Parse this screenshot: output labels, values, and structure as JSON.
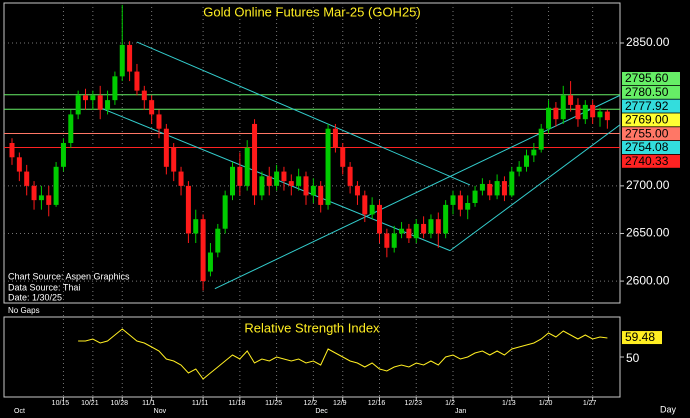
{
  "chart_data": [
    {
      "type": "candlestick",
      "title": "Gold Online Futures Mar-25 (GOH25)",
      "notes": [
        "Chart Source: Aspen Graphics",
        "Data Source: Thai",
        "Date:    1/30/25"
      ],
      "footnote": "No Gaps",
      "up_color": "#00cc00",
      "down_color": "#ff1a1a",
      "categories": [
        null,
        null,
        null,
        null,
        null,
        null,
        null,
        "10/15",
        null,
        null,
        null,
        "10/21",
        null,
        null,
        null,
        "10/28",
        null,
        null,
        null,
        "11/1",
        null,
        null,
        null,
        null,
        null,
        null,
        "11/11",
        null,
        null,
        null,
        null,
        "11/18",
        null,
        null,
        null,
        null,
        "11/25",
        null,
        null,
        null,
        null,
        "12/2",
        null,
        null,
        null,
        "12/9",
        null,
        null,
        null,
        null,
        "12/16",
        null,
        null,
        null,
        null,
        "12/23",
        null,
        null,
        null,
        null,
        "1/2",
        null,
        null,
        null,
        null,
        null,
        null,
        null,
        "1/13",
        null,
        null,
        null,
        null,
        "1/20",
        null,
        null,
        null,
        null,
        null,
        "1/27",
        null,
        null
      ],
      "months": [
        "Oct",
        "Nov",
        "Dec",
        "Jan"
      ],
      "period_label": "Day",
      "open": [
        2745,
        2730,
        2715,
        2700,
        2685,
        2690,
        2680,
        2720,
        2745,
        2775,
        2795,
        2790,
        2795,
        2780,
        2790,
        2815,
        2848,
        2820,
        2800,
        2790,
        2775,
        2760,
        2740,
        2715,
        2700,
        2650,
        2665,
        2610,
        2630,
        2655,
        2690,
        2720,
        2700,
        2765,
        2690,
        2710,
        2700,
        2715,
        2705,
        2700,
        2710,
        2690,
        2700,
        2680,
        2760,
        2740,
        2720,
        2700,
        2690,
        2670,
        2680,
        2650,
        2635,
        2650,
        2655,
        2645,
        2660,
        2650,
        2665,
        2650,
        2680,
        2690,
        2675,
        2682,
        2695,
        2702,
        2690,
        2705,
        2690,
        2715,
        2720,
        2732,
        2738,
        2760,
        2782,
        2770,
        2795,
        2785,
        2770,
        2785,
        2772,
        2778
      ],
      "high": [
        2750,
        2735,
        2722,
        2705,
        2700,
        2700,
        2725,
        2750,
        2780,
        2800,
        2802,
        2800,
        2805,
        2800,
        2820,
        2890,
        2852,
        2828,
        2805,
        2795,
        2780,
        2765,
        2745,
        2720,
        2705,
        2675,
        2670,
        2640,
        2660,
        2695,
        2725,
        2735,
        2748,
        2770,
        2715,
        2720,
        2722,
        2720,
        2712,
        2718,
        2715,
        2708,
        2705,
        2765,
        2765,
        2745,
        2725,
        2705,
        2695,
        2688,
        2685,
        2655,
        2658,
        2662,
        2660,
        2665,
        2668,
        2670,
        2672,
        2685,
        2695,
        2695,
        2690,
        2700,
        2708,
        2706,
        2712,
        2710,
        2720,
        2726,
        2738,
        2745,
        2765,
        2790,
        2788,
        2805,
        2810,
        2792,
        2790,
        2790,
        2782,
        2780
      ],
      "low": [
        2722,
        2705,
        2690,
        2675,
        2675,
        2668,
        2678,
        2715,
        2740,
        2770,
        2780,
        2780,
        2770,
        2775,
        2785,
        2810,
        2810,
        2795,
        2780,
        2765,
        2750,
        2712,
        2705,
        2690,
        2640,
        2640,
        2590,
        2605,
        2625,
        2650,
        2685,
        2690,
        2695,
        2680,
        2685,
        2690,
        2695,
        2695,
        2690,
        2695,
        2680,
        2682,
        2672,
        2675,
        2735,
        2712,
        2692,
        2680,
        2662,
        2665,
        2640,
        2625,
        2630,
        2645,
        2640,
        2640,
        2645,
        2645,
        2635,
        2645,
        2670,
        2668,
        2665,
        2678,
        2690,
        2685,
        2686,
        2684,
        2688,
        2710,
        2715,
        2725,
        2735,
        2755,
        2762,
        2765,
        2778,
        2762,
        2765,
        2765,
        2762,
        2760
      ],
      "close": [
        2730,
        2715,
        2700,
        2685,
        2690,
        2680,
        2720,
        2745,
        2775,
        2795,
        2790,
        2795,
        2780,
        2790,
        2815,
        2848,
        2820,
        2800,
        2790,
        2775,
        2760,
        2720,
        2715,
        2700,
        2650,
        2665,
        2600,
        2630,
        2655,
        2690,
        2720,
        2700,
        2740,
        2690,
        2710,
        2700,
        2715,
        2705,
        2700,
        2710,
        2690,
        2700,
        2680,
        2760,
        2740,
        2720,
        2700,
        2690,
        2670,
        2680,
        2650,
        2635,
        2650,
        2655,
        2645,
        2660,
        2650,
        2665,
        2650,
        2680,
        2690,
        2675,
        2682,
        2695,
        2702,
        2690,
        2705,
        2690,
        2715,
        2720,
        2732,
        2738,
        2760,
        2782,
        2770,
        2795,
        2785,
        2770,
        2785,
        2772,
        2778,
        2769
      ],
      "ylim": [
        2577,
        2892
      ],
      "yticks": [
        {
          "value": 2600,
          "label": "2600.00"
        },
        {
          "value": 2650,
          "label": "2650.00"
        },
        {
          "value": 2700,
          "label": "2700.00"
        },
        {
          "value": 2850,
          "label": "2850.00"
        }
      ],
      "grid": true,
      "trendline_color": "#33cccc",
      "trendlines": [
        {
          "from": [
            17,
            2851
          ],
          "to": [
            62.3,
            2701
          ]
        },
        {
          "from": [
            27.6,
            2592
          ],
          "to": [
            82.7,
            2795
          ]
        },
        {
          "from": [
            12,
            2782
          ],
          "to": [
            59.6,
            2632
          ]
        },
        {
          "from": [
            59.6,
            2632
          ],
          "to": [
            82.7,
            2764
          ]
        }
      ],
      "price_labels": [
        {
          "value": 2795.6,
          "label": "2795.60",
          "color": "#66ee66",
          "line": true
        },
        {
          "value": 2780.5,
          "label": "2780.50",
          "color": "#66ee66",
          "line": true
        },
        {
          "value": 2777.92,
          "label": "2777.92",
          "color": "#33dddd",
          "line": false
        },
        {
          "value": 2769,
          "label": "2769.00",
          "color": "#ffff33",
          "line": false
        },
        {
          "value": 2755,
          "label": "2755.00",
          "color": "#ff7766",
          "line": true
        },
        {
          "value": 2754.08,
          "label": "2754.08",
          "color": "#33dddd",
          "line": false
        },
        {
          "value": 2740.33,
          "label": "2740.33",
          "color": "#ff2222",
          "line": true
        }
      ]
    },
    {
      "type": "line",
      "title": "Relative Strength Index",
      "color": "#ffee22",
      "values": [
        null,
        null,
        null,
        null,
        null,
        null,
        null,
        null,
        null,
        58,
        58,
        59,
        57,
        58,
        61,
        64,
        61,
        58,
        57,
        55,
        53,
        49,
        48,
        46,
        42,
        44,
        39,
        42,
        45,
        48,
        51,
        49,
        53,
        47,
        49,
        48,
        50,
        49,
        48,
        49,
        47,
        48,
        46,
        54,
        52,
        50,
        48,
        47,
        45,
        47,
        44,
        43,
        45,
        46,
        45,
        47,
        46,
        48,
        46,
        50,
        51,
        49,
        50,
        52,
        53,
        51,
        53,
        51,
        54,
        55,
        56,
        57,
        59,
        62,
        60,
        63,
        61,
        59,
        61,
        59,
        60,
        59.48
      ],
      "value_labels": {
        "81": "59.48"
      },
      "ylim": [
        30,
        70
      ],
      "yticks": [
        50
      ]
    }
  ]
}
